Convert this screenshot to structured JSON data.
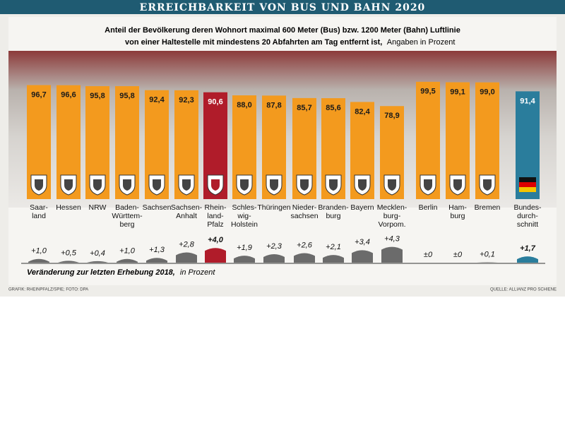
{
  "title": "ERREICHBARKEIT VON BUS UND BAHN 2020",
  "credit": "GRAFIK: RHEINPFALZ/SPIE; FOTO: DPA",
  "source": "QUELLE: ALLIANZ PRO SCHIENE",
  "chart_data": [
    {
      "type": "bar",
      "subtitle": [
        "Anteil der Bevölkerung deren Wohnort maximal 600 Meter (Bus) bzw. 1200 Meter (Bahn) Luftlinie",
        "von einer Haltestelle mit mindestens 20 Abfahrten am Tag entfernt ist,",
        "Angaben in Prozent"
      ],
      "categories": [
        [
          "Saar-",
          "land"
        ],
        [
          "Hessen"
        ],
        [
          "NRW"
        ],
        [
          "Baden-",
          "Württem-",
          "berg"
        ],
        [
          "Sachsen"
        ],
        [
          "Sachsen-",
          "Anhalt"
        ],
        [
          "Rhein-",
          "land-",
          "Pfalz"
        ],
        [
          "Schles-",
          "wig-",
          "Holstein"
        ],
        [
          "Thüringen"
        ],
        [
          "Nieder-",
          "sachsen"
        ],
        [
          "Branden-",
          "burg"
        ],
        [
          "Bayern"
        ],
        [
          "Mecklen-",
          "burg-",
          "Vorpom."
        ],
        [
          "Berlin"
        ],
        [
          "Ham-",
          "burg"
        ],
        [
          "Bremen"
        ],
        [
          "Bundes-",
          "durch-",
          "schnitt"
        ]
      ],
      "values": [
        96.7,
        96.6,
        95.8,
        95.8,
        92.4,
        92.3,
        90.6,
        88.0,
        87.8,
        85.7,
        85.6,
        82.4,
        78.9,
        99.5,
        99.1,
        99.0,
        91.4
      ],
      "value_labels": [
        "96,7",
        "96,6",
        "95,8",
        "95,8",
        "92,4",
        "92,3",
        "90,6",
        "88,0",
        "87,8",
        "85,7",
        "85,6",
        "82,4",
        "78,9",
        "99,5",
        "99,1",
        "99,0",
        "91,4"
      ],
      "colors": [
        "#f39a1e",
        "#f39a1e",
        "#f39a1e",
        "#f39a1e",
        "#f39a1e",
        "#f39a1e",
        "#b01c2a",
        "#f39a1e",
        "#f39a1e",
        "#f39a1e",
        "#f39a1e",
        "#f39a1e",
        "#f39a1e",
        "#f39a1e",
        "#f39a1e",
        "#f39a1e",
        "#2a7d9c"
      ]
    },
    {
      "type": "change",
      "title": [
        "Veränderung zur letzten Erhebung 2018,",
        "in Prozent"
      ],
      "values": [
        1.0,
        0.5,
        0.4,
        1.0,
        1.3,
        2.8,
        4.0,
        1.9,
        2.3,
        2.6,
        2.1,
        3.4,
        4.3,
        0,
        0,
        0.1,
        1.7
      ],
      "value_labels": [
        "+1,0",
        "+0,5",
        "+0,4",
        "+1,0",
        "+1,3",
        "+2,8",
        "+4,0",
        "+1,9",
        "+2,3",
        "+2,6",
        "+2,1",
        "+3,4",
        "+4,3",
        "±0",
        "±0",
        "+0,1",
        "+1,7"
      ],
      "colors": [
        "#6b6b6b",
        "#6b6b6b",
        "#6b6b6b",
        "#6b6b6b",
        "#6b6b6b",
        "#6b6b6b",
        "#b01c2a",
        "#6b6b6b",
        "#6b6b6b",
        "#6b6b6b",
        "#6b6b6b",
        "#6b6b6b",
        "#6b6b6b",
        "#6b6b6b",
        "#6b6b6b",
        "#6b6b6b",
        "#2a7d9c"
      ]
    }
  ]
}
